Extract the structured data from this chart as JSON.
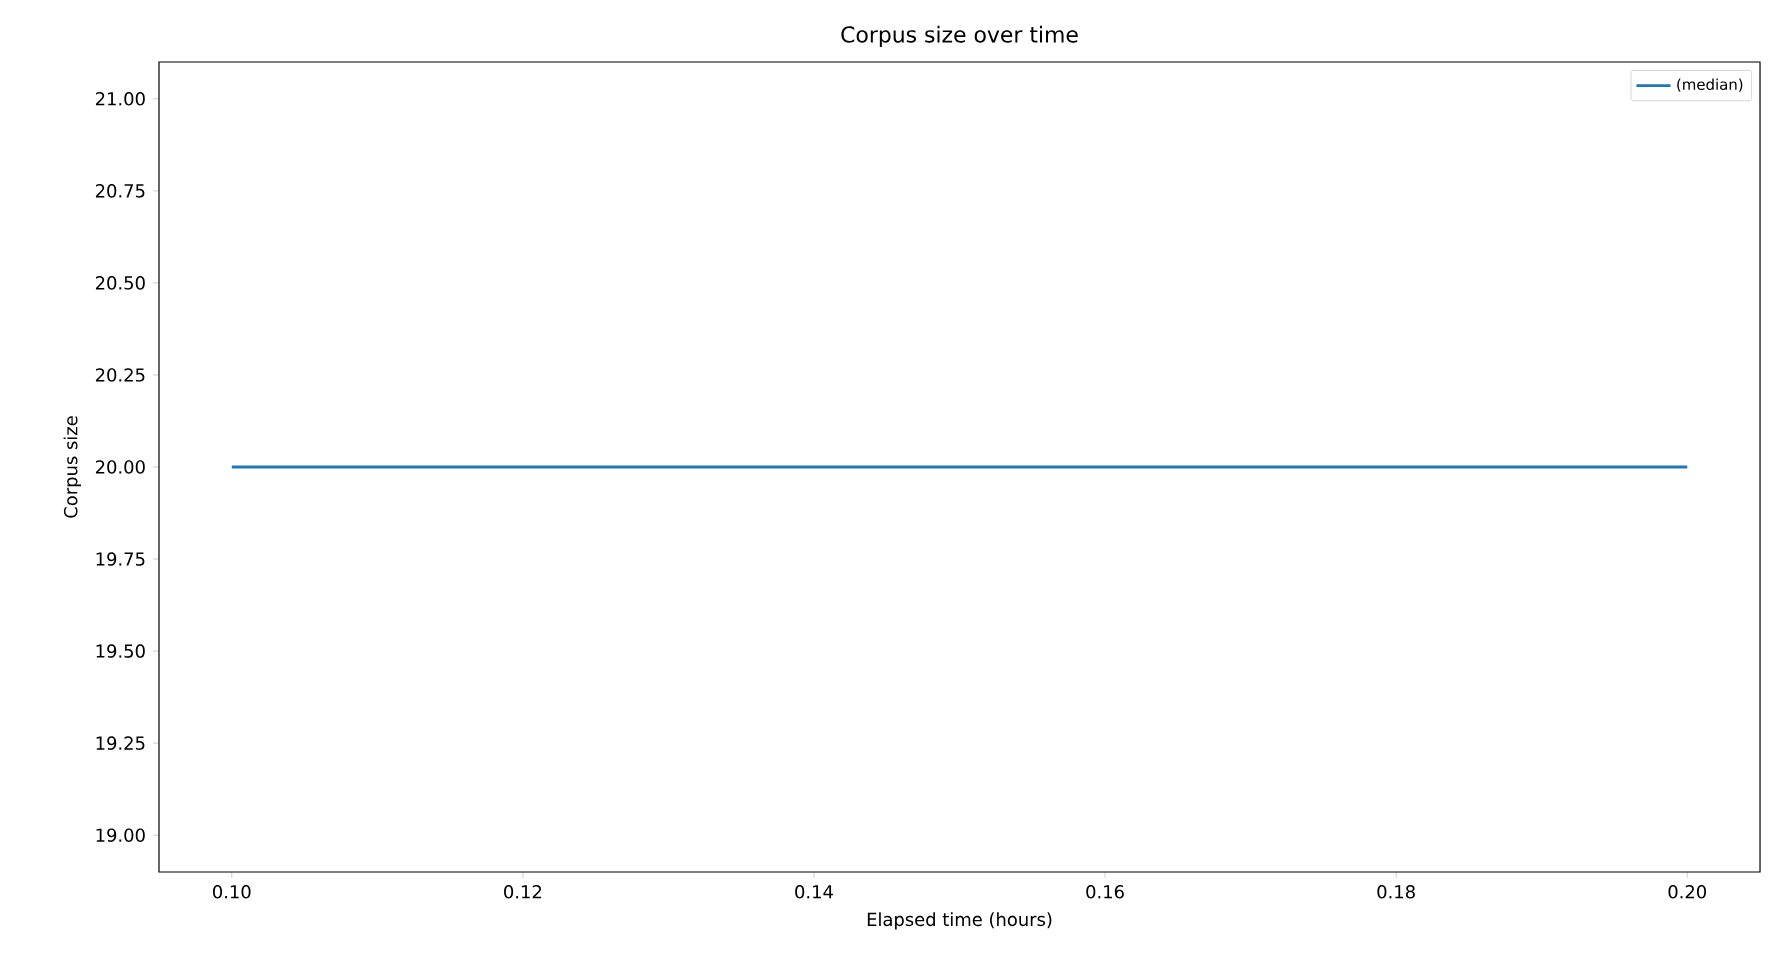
{
  "chart_data": {
    "type": "line",
    "title": "Corpus size over time",
    "xlabel": "Elapsed time (hours)",
    "ylabel": "Corpus size",
    "x": [
      0.1,
      0.2
    ],
    "series": [
      {
        "name": "(median)",
        "color": "#1f77b4",
        "values": [
          20,
          20
        ]
      }
    ],
    "xlim": [
      0.095,
      0.205
    ],
    "xticks": [
      {
        "value": 0.1,
        "label": "0.10"
      },
      {
        "value": 0.12,
        "label": "0.12"
      },
      {
        "value": 0.14,
        "label": "0.14"
      },
      {
        "value": 0.16,
        "label": "0.16"
      },
      {
        "value": 0.18,
        "label": "0.18"
      },
      {
        "value": 0.2,
        "label": "0.20"
      }
    ],
    "ylim": [
      18.9,
      21.1
    ],
    "yticks": [
      {
        "value": 19,
        "label": "19.00"
      },
      {
        "value": 19.25,
        "label": "19.25"
      },
      {
        "value": 19.5,
        "label": "19.50"
      },
      {
        "value": 19.75,
        "label": "19.75"
      },
      {
        "value": 20,
        "label": "20.00"
      },
      {
        "value": 20.25,
        "label": "20.25"
      },
      {
        "value": 20.5,
        "label": "20.50"
      },
      {
        "value": 20.75,
        "label": "20.75"
      },
      {
        "value": 21,
        "label": "21.00"
      }
    ],
    "grid": false,
    "legend": "top right",
    "marker": "none",
    "line_style": "solid"
  }
}
